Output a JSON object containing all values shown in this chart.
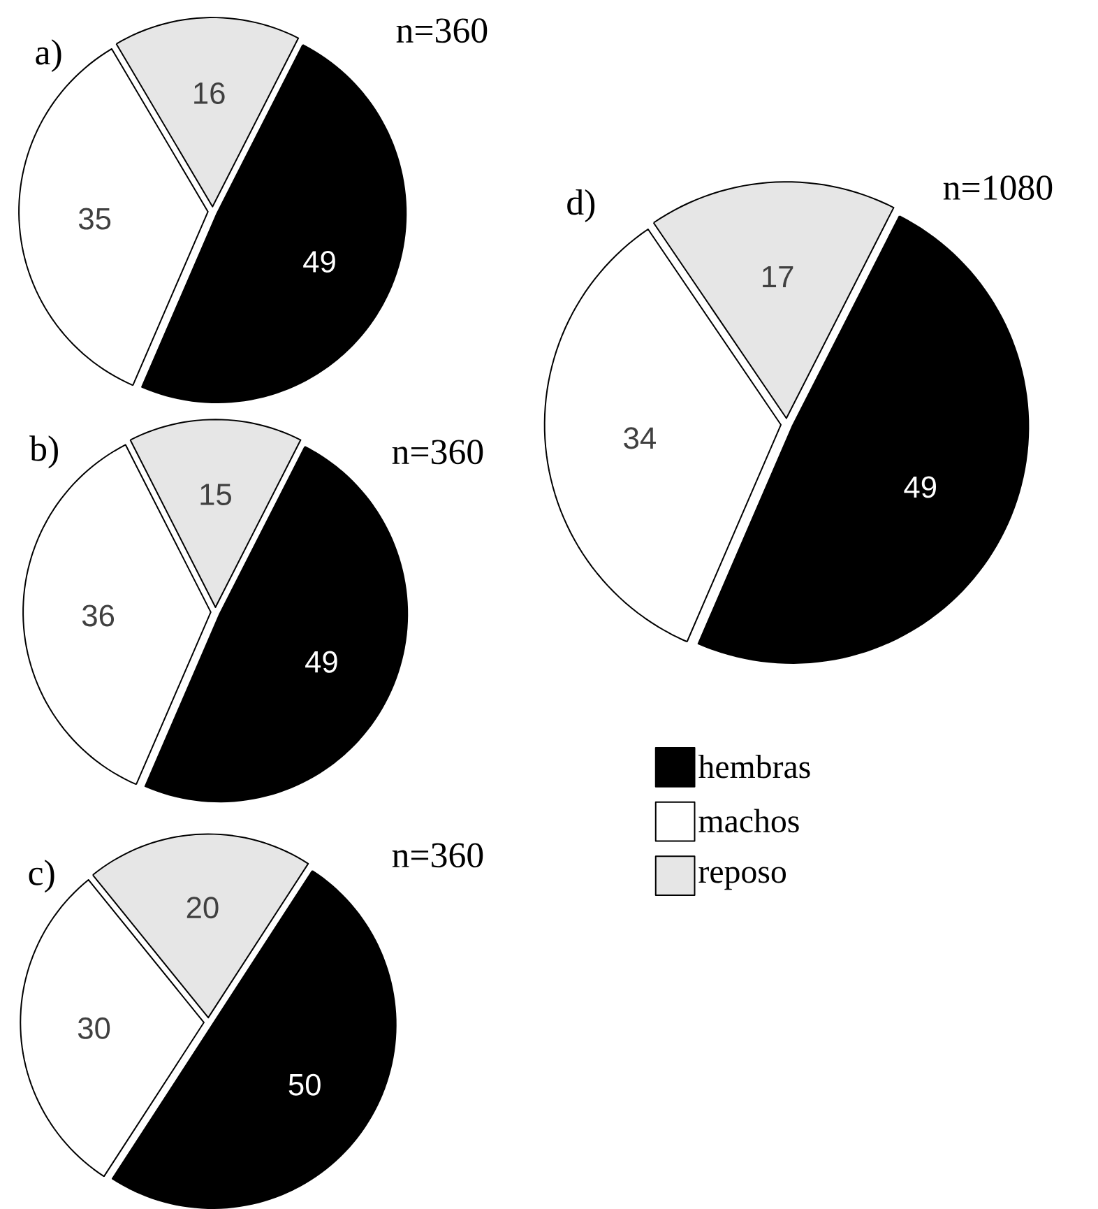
{
  "chart_data": [
    {
      "type": "pie",
      "title": "a)",
      "subtitle": "n=360",
      "categories": [
        null,
        null,
        null
      ],
      "values": [
        49,
        35,
        16
      ],
      "colors": [
        "#000000",
        "#ffffff",
        "#e6e6e6"
      ],
      "data_labels": true
    },
    {
      "type": "pie",
      "title": "b)",
      "subtitle": "n=360",
      "categories": [
        null,
        null,
        null
      ],
      "values": [
        49,
        36,
        15
      ],
      "colors": [
        "#000000",
        "#ffffff",
        "#e6e6e6"
      ],
      "data_labels": true
    },
    {
      "type": "pie",
      "title": "c)",
      "subtitle": "n=360",
      "categories": [
        null,
        null,
        null
      ],
      "values": [
        50,
        30,
        20
      ],
      "colors": [
        "#000000",
        "#ffffff",
        "#e6e6e6"
      ],
      "data_labels": true
    },
    {
      "type": "pie",
      "title": "d)",
      "subtitle": "n=1080",
      "categories": [
        "hembras",
        "machos",
        "reposo"
      ],
      "values": [
        49,
        34,
        17
      ],
      "colors": [
        "#000000",
        "#ffffff",
        "#e6e6e6"
      ],
      "data_labels": true,
      "legend": "bottom"
    }
  ]
}
